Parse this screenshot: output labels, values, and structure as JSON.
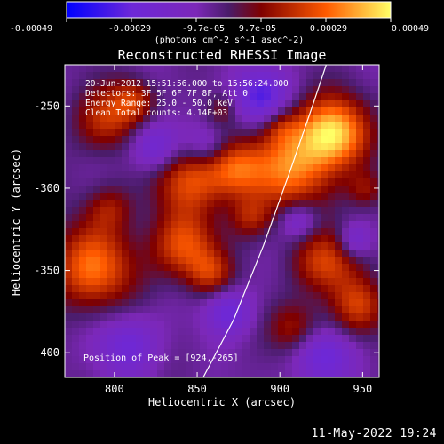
{
  "chart_data": {
    "type": "heatmap",
    "title": "Reconstructed RHESSI Image",
    "annotations": [
      "20-Jun-2012 15:51:56.000 to 15:56:24.000",
      "Detectors: 3F 5F 6F 7F 8F, Att 0",
      "Energy Range: 25.0 - 50.0 keV",
      "Clean     Total counts: 4.14E+03",
      "Position of Peak = [924,-265]"
    ],
    "colorbar": {
      "min": -0.00049,
      "max": 0.00049,
      "tick_labels": [
        "-0.00049",
        "-0.00029",
        "-9.7e-05",
        "9.7e-05",
        "0.00029",
        "0.00049"
      ],
      "unit_label": "(photons cm^-2 s^-1 asec^-2)"
    },
    "x_axis": {
      "label": "Heliocentric X (arcsec)",
      "ticks": [
        800,
        850,
        900,
        950
      ],
      "range": [
        770,
        960
      ]
    },
    "y_axis": {
      "label": "Heliocentric Y (arcsec)",
      "ticks": [
        -250,
        -300,
        -350,
        -400
      ],
      "range": [
        -415,
        -225
      ]
    },
    "peak": {
      "x": 924,
      "y": -265
    },
    "blobs": [
      {
        "x": 932,
        "y": -266,
        "r": 15,
        "v": 1.0
      },
      {
        "x": 907,
        "y": -288,
        "r": 18,
        "v": 0.75
      },
      {
        "x": 845,
        "y": -294,
        "r": 16,
        "v": 0.62
      },
      {
        "x": 874,
        "y": -289,
        "r": 12,
        "v": 0.58
      },
      {
        "x": 795,
        "y": -258,
        "r": 14,
        "v": 0.52
      },
      {
        "x": 812,
        "y": -247,
        "r": 9,
        "v": 0.45
      },
      {
        "x": 787,
        "y": -348,
        "r": 18,
        "v": 0.75
      },
      {
        "x": 842,
        "y": -335,
        "r": 14,
        "v": 0.62
      },
      {
        "x": 858,
        "y": -352,
        "r": 10,
        "v": 0.45
      },
      {
        "x": 928,
        "y": -345,
        "r": 14,
        "v": 0.58
      },
      {
        "x": 948,
        "y": -372,
        "r": 12,
        "v": 0.52
      },
      {
        "x": 909,
        "y": -385,
        "r": 11,
        "v": 0.43
      },
      {
        "x": 882,
        "y": -318,
        "r": 9,
        "v": 0.4
      },
      {
        "x": 952,
        "y": -301,
        "r": 8,
        "v": 0.35
      },
      {
        "x": 797,
        "y": -312,
        "r": 10,
        "v": 0.36
      },
      {
        "x": 865,
        "y": -252,
        "r": 7,
        "v": 0.28
      },
      {
        "x": 900,
        "y": -262,
        "r": 8,
        "v": 0.32
      },
      {
        "x": 825,
        "y": -275,
        "r": 11,
        "v": -0.55
      },
      {
        "x": 888,
        "y": -245,
        "r": 12,
        "v": -0.62
      },
      {
        "x": 869,
        "y": -375,
        "r": 10,
        "v": -0.48
      },
      {
        "x": 926,
        "y": -402,
        "r": 12,
        "v": -0.5
      },
      {
        "x": 808,
        "y": -395,
        "r": 13,
        "v": -0.45
      },
      {
        "x": 855,
        "y": -275,
        "r": 9,
        "v": -0.35
      },
      {
        "x": 912,
        "y": -320,
        "r": 8,
        "v": -0.42
      },
      {
        "x": 945,
        "y": -332,
        "r": 7,
        "v": -0.38
      }
    ],
    "limb_line": {
      "points": [
        [
          851,
          -420
        ],
        [
          872,
          -380
        ],
        [
          890,
          -335
        ],
        [
          906,
          -290
        ],
        [
          918,
          -255
        ],
        [
          928,
          -225
        ]
      ]
    }
  },
  "footer": {
    "timestamp": "11-May-2022 19:24"
  }
}
